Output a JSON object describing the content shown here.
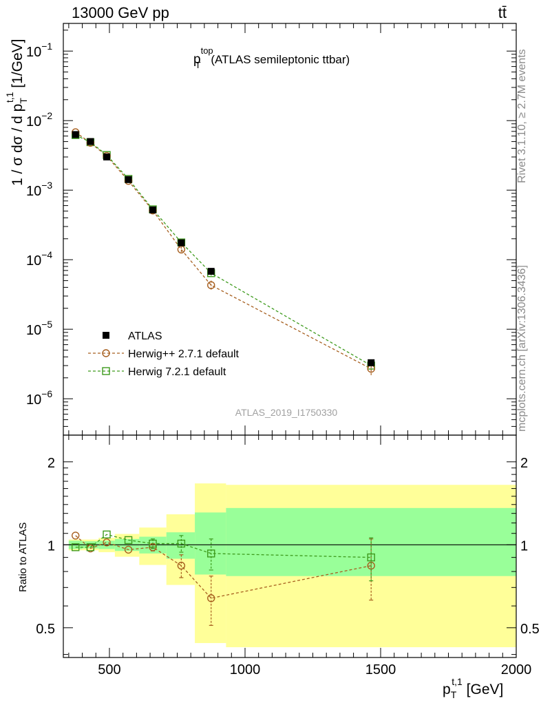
{
  "header": {
    "energy_label": "13000 GeV pp",
    "process_label": "tt̄"
  },
  "side_labels": {
    "rivet": "Rivet 3.1.10, ≥ 2.7M events",
    "source": "mcplots.cern.ch [arXiv:1306.3436]"
  },
  "watermark": "ATLAS_2019_I1750330",
  "chart_data": [
    {
      "type": "scatter",
      "panel": "main",
      "title": {
        "main": "p",
        "sup": "top",
        "sub": "T",
        "suffix": " (ATLAS semileptonic ttbar)"
      },
      "ylabel": "1 / σ dσ / d p",
      "ylabel_sub": "T",
      "ylabel_sup": "t,1",
      "ylabel_unit": " [1/GeV]",
      "yscale": "log",
      "ylim": [
        3e-07,
        0.25
      ],
      "xlim": [
        330,
        2000
      ],
      "ytick_labels": [
        {
          "base": "10",
          "exp": "−6",
          "value": 1e-06
        },
        {
          "base": "10",
          "exp": "−5",
          "value": 1e-05
        },
        {
          "base": "10",
          "exp": "−4",
          "value": 0.0001
        },
        {
          "base": "10",
          "exp": "−3",
          "value": 0.001
        },
        {
          "base": "10",
          "exp": "−2",
          "value": 0.01
        },
        {
          "base": "10",
          "exp": "−1",
          "value": 0.1
        }
      ],
      "legend_position": "bottom-left",
      "x": [
        375,
        430,
        490,
        570,
        660,
        765,
        875,
        1465
      ],
      "series": [
        {
          "name": "ATLAS",
          "style": "data",
          "color": "#000000",
          "values": [
            0.0063,
            0.005,
            0.003,
            0.00142,
            0.00052,
            0.000175,
            6.8e-05,
            3.3e-06
          ]
        },
        {
          "name": "Herwig++ 2.7.1 default",
          "style": "circle",
          "color": "#a65e1e",
          "values": [
            0.0068,
            0.0048,
            0.0031,
            0.00136,
            0.00051,
            0.00014,
            4.3e-05,
            2.7e-06
          ],
          "errors": [
            0,
            0,
            0,
            0,
            0,
            1.4e-05,
            7e-06,
            6e-07
          ]
        },
        {
          "name": "Herwig 7.2.1 default",
          "style": "square",
          "color": "#3d9a1c",
          "values": [
            0.0062,
            0.0049,
            0.0032,
            0.00145,
            0.00053,
            0.000177,
            6.4e-05,
            3e-06
          ],
          "errors": [
            0,
            0,
            0,
            0,
            0,
            1e-05,
            5e-06,
            4e-07
          ]
        }
      ]
    },
    {
      "type": "scatter",
      "panel": "ratio",
      "ylabel": "Ratio to ATLAS",
      "xlabel": "p",
      "xlabel_sub": "T",
      "xlabel_sup": "t,1",
      "xlabel_unit": " [GeV]",
      "yscale": "log",
      "ylim": [
        0.39,
        2.5
      ],
      "xlim": [
        330,
        2000
      ],
      "xtick_labels": [
        "500",
        "1000",
        "1500",
        "2000"
      ],
      "xtick_values": [
        500,
        1000,
        1500,
        2000
      ],
      "ytick_labels": [
        "0.5",
        "1",
        "2"
      ],
      "ytick_values": [
        0.5,
        1,
        2
      ],
      "bin_edges": [
        350,
        400,
        460,
        520,
        610,
        710,
        815,
        930,
        2000
      ],
      "band_inner": [
        [
          0.965,
          1.035
        ],
        [
          0.97,
          1.03
        ],
        [
          0.965,
          1.035
        ],
        [
          0.95,
          1.05
        ],
        [
          0.93,
          1.07
        ],
        [
          0.89,
          1.11
        ],
        [
          0.78,
          1.31
        ],
        [
          0.77,
          1.36
        ]
      ],
      "band_outer": [
        [
          0.955,
          1.045
        ],
        [
          0.955,
          1.045
        ],
        [
          0.94,
          1.06
        ],
        [
          0.905,
          1.095
        ],
        [
          0.845,
          1.155
        ],
        [
          0.715,
          1.29
        ],
        [
          0.44,
          1.67
        ],
        [
          0.425,
          1.65
        ]
      ],
      "x": [
        375,
        430,
        490,
        570,
        660,
        765,
        875,
        1465
      ],
      "series": [
        {
          "name": "Herwig++ 2.7.1 default",
          "style": "circle",
          "color": "#a65e1e",
          "values": [
            1.08,
            0.97,
            1.02,
            0.96,
            0.98,
            0.84,
            0.64,
            0.84
          ],
          "errors": [
            0,
            0,
            0,
            0,
            0.03,
            0.08,
            0.13,
            0.21
          ]
        },
        {
          "name": "Herwig 7.2.1 default",
          "style": "square",
          "color": "#3d9a1c",
          "values": [
            0.98,
            0.98,
            1.09,
            1.04,
            1.01,
            1.01,
            0.93,
            0.9
          ],
          "errors": [
            0,
            0,
            0,
            0,
            0.04,
            0.07,
            0.12,
            0.16
          ]
        }
      ]
    }
  ]
}
